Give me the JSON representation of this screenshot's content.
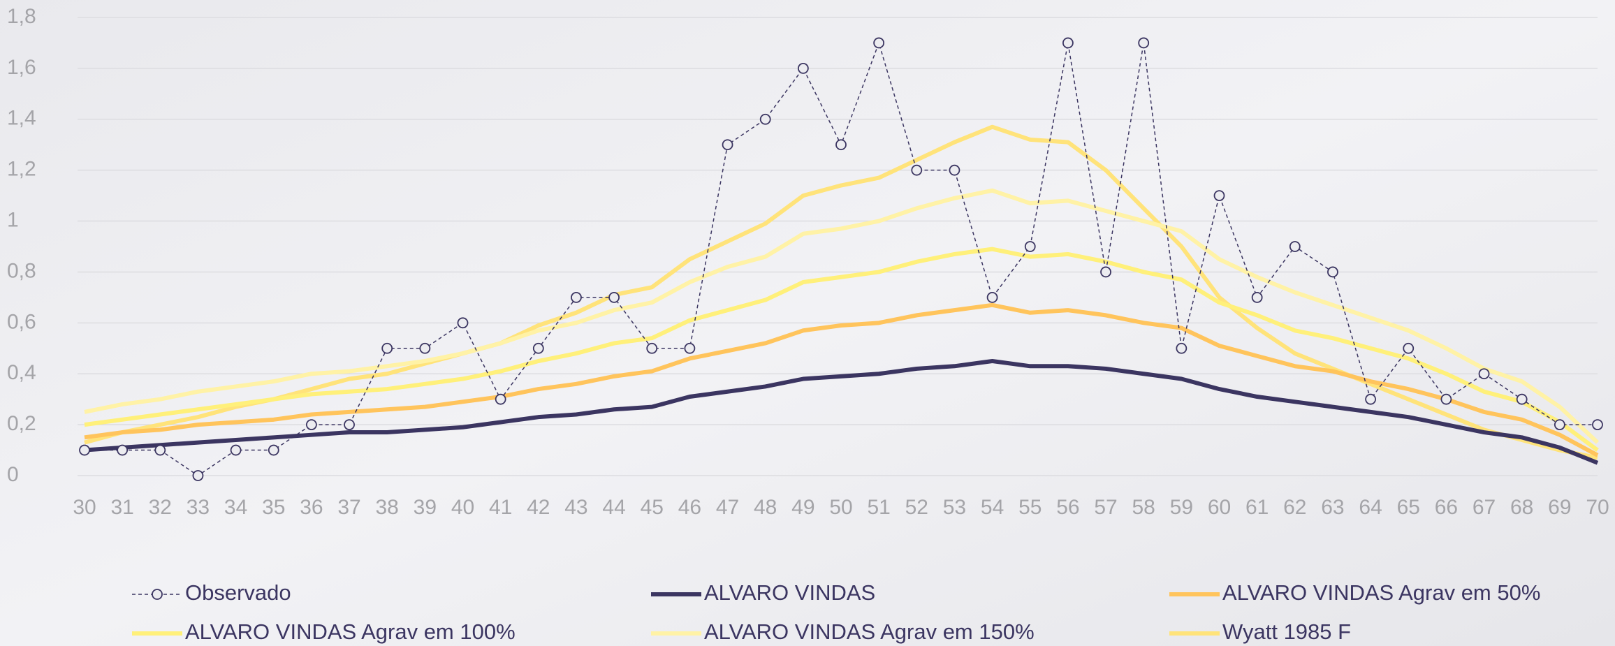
{
  "chart_data": {
    "type": "line",
    "x": [
      30,
      31,
      32,
      33,
      34,
      35,
      36,
      37,
      38,
      39,
      40,
      41,
      42,
      43,
      44,
      45,
      46,
      47,
      48,
      49,
      50,
      51,
      52,
      53,
      54,
      55,
      56,
      57,
      58,
      59,
      60,
      61,
      62,
      63,
      64,
      65,
      66,
      67,
      68,
      69,
      70
    ],
    "xlim": [
      30,
      70
    ],
    "xticks": [
      30,
      31,
      32,
      33,
      34,
      35,
      36,
      37,
      38,
      39,
      40,
      41,
      42,
      43,
      44,
      45,
      46,
      47,
      48,
      49,
      50,
      51,
      52,
      53,
      54,
      55,
      56,
      57,
      58,
      59,
      60,
      61,
      62,
      63,
      64,
      65,
      66,
      67,
      68,
      69,
      70
    ],
    "ylim": [
      0,
      1.8
    ],
    "yticks": [
      0,
      {
        "value": 0.2,
        "label": "0,2"
      },
      {
        "value": 0.4,
        "label": "0,4"
      },
      {
        "value": 0.6,
        "label": "0,6"
      },
      {
        "value": 0.8,
        "label": "0,8"
      },
      1,
      {
        "value": 1.2,
        "label": "1,2"
      },
      {
        "value": 1.4,
        "label": "1,4"
      },
      {
        "value": 1.6,
        "label": "1,6"
      },
      {
        "value": 1.8,
        "label": "1,8"
      }
    ],
    "grid": true,
    "series": [
      {
        "name": "Observado",
        "color": "#3b3561",
        "style": "dashed-markers",
        "values": [
          0.1,
          0.1,
          0.1,
          0,
          0.1,
          0.1,
          0.2,
          0.2,
          0.5,
          0.5,
          0.6,
          0.3,
          0.5,
          0.7,
          0.7,
          0.5,
          0.5,
          1.3,
          1.4,
          1.6,
          1.3,
          1.7,
          1.2,
          1.2,
          0.7,
          0.9,
          1.7,
          0.8,
          1.7,
          0.5,
          1.1,
          0.7,
          0.9,
          0.8,
          0.3,
          0.5,
          0.3,
          0.4,
          0.3,
          0.2,
          0.2
        ]
      },
      {
        "name": "ALVARO  VINDAS",
        "color": "#3b3561",
        "values": [
          0.1,
          0.11,
          0.12,
          0.13,
          0.14,
          0.15,
          0.16,
          0.17,
          0.17,
          0.18,
          0.19,
          0.21,
          0.23,
          0.24,
          0.26,
          0.27,
          0.31,
          0.33,
          0.35,
          0.38,
          0.39,
          0.4,
          0.42,
          0.43,
          0.45,
          0.43,
          0.43,
          0.42,
          0.4,
          0.38,
          0.34,
          0.31,
          0.29,
          0.27,
          0.25,
          0.23,
          0.2,
          0.17,
          0.15,
          0.11,
          0.05
        ]
      },
      {
        "name": "ALVARO  VINDAS Agrav em 50%",
        "color": "#ffc45c",
        "values": [
          0.15,
          0.17,
          0.18,
          0.2,
          0.21,
          0.22,
          0.24,
          0.25,
          0.26,
          0.27,
          0.29,
          0.31,
          0.34,
          0.36,
          0.39,
          0.41,
          0.46,
          0.49,
          0.52,
          0.57,
          0.59,
          0.6,
          0.63,
          0.65,
          0.67,
          0.64,
          0.65,
          0.63,
          0.6,
          0.58,
          0.51,
          0.47,
          0.43,
          0.41,
          0.37,
          0.34,
          0.3,
          0.25,
          0.22,
          0.16,
          0.08
        ]
      },
      {
        "name": "ALVARO  VINDAS Agrav em 100%",
        "color": "#fff07a",
        "values": [
          0.2,
          0.22,
          0.24,
          0.26,
          0.28,
          0.3,
          0.32,
          0.33,
          0.34,
          0.36,
          0.38,
          0.41,
          0.45,
          0.48,
          0.52,
          0.54,
          0.61,
          0.65,
          0.69,
          0.76,
          0.78,
          0.8,
          0.84,
          0.87,
          0.89,
          0.86,
          0.87,
          0.84,
          0.8,
          0.77,
          0.68,
          0.63,
          0.57,
          0.54,
          0.5,
          0.46,
          0.4,
          0.33,
          0.29,
          0.21,
          0.1
        ]
      },
      {
        "name": "ALVARO  VINDAS Agrav em 150%",
        "color": "#fff2a6",
        "values": [
          0.25,
          0.28,
          0.3,
          0.33,
          0.35,
          0.37,
          0.4,
          0.41,
          0.43,
          0.45,
          0.48,
          0.52,
          0.57,
          0.6,
          0.65,
          0.68,
          0.76,
          0.82,
          0.86,
          0.95,
          0.97,
          1.0,
          1.05,
          1.09,
          1.12,
          1.07,
          1.08,
          1.04,
          1.0,
          0.96,
          0.85,
          0.78,
          0.72,
          0.67,
          0.62,
          0.57,
          0.5,
          0.42,
          0.37,
          0.27,
          0.13
        ]
      },
      {
        "name": "Wyatt 1985 F",
        "color": "#ffe37a",
        "values": [
          0.13,
          0.17,
          0.2,
          0.23,
          0.27,
          0.3,
          0.34,
          0.38,
          0.4,
          0.44,
          0.48,
          0.52,
          0.59,
          0.64,
          0.71,
          0.74,
          0.85,
          0.92,
          0.99,
          1.1,
          1.14,
          1.17,
          1.24,
          1.31,
          1.37,
          1.32,
          1.31,
          1.2,
          1.05,
          0.9,
          0.7,
          0.58,
          0.48,
          0.42,
          0.36,
          0.3,
          0.24,
          0.18,
          0.14,
          0.1,
          0.07
        ]
      }
    ]
  }
}
